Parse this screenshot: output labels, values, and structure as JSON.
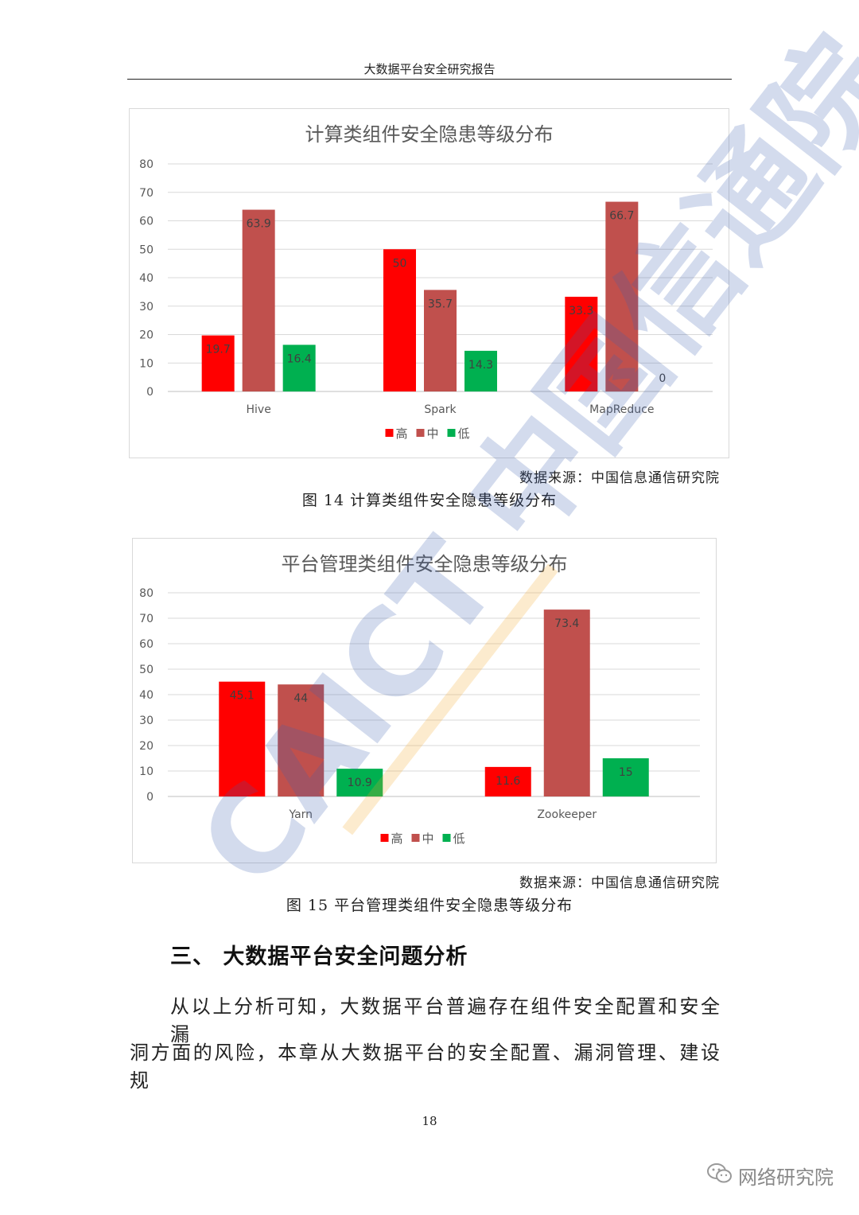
{
  "header": {
    "title": "大数据平台安全研究报告"
  },
  "figures": [
    {
      "source_text": "数据来源：中国信息通信研究院",
      "caption": "图 14 计算类组件安全隐患等级分布"
    },
    {
      "source_text": "数据来源：中国信息通信研究院",
      "caption": "图 15 平台管理类组件安全隐患等级分布"
    }
  ],
  "section": {
    "heading": "三、 大数据平台安全问题分析"
  },
  "paragraph_lines": [
    "从以上分析可知，大数据平台普遍存在组件安全配置和安全漏",
    "洞方面的风险，本章从大数据平台的安全配置、漏洞管理、建设规"
  ],
  "page_number": "18",
  "wechat": {
    "label": "网络研究院",
    "icon": "wechat-icon"
  },
  "watermark": {
    "text": "CAICT 中国信通院"
  },
  "colors": {
    "high": "#ff0000",
    "mid": "#c0504d",
    "low": "#00b050"
  },
  "chart_data": [
    {
      "type": "bar",
      "title": "计算类组件安全隐患等级分布",
      "categories": [
        "Hive",
        "Spark",
        "MapReduce"
      ],
      "series": [
        {
          "name": "高",
          "values": [
            19.7,
            50,
            33.3
          ]
        },
        {
          "name": "中",
          "values": [
            63.9,
            35.7,
            66.7
          ]
        },
        {
          "name": "低",
          "values": [
            16.4,
            14.3,
            0
          ]
        }
      ],
      "ylim": [
        0,
        80
      ],
      "yticks": [
        0,
        10,
        20,
        30,
        40,
        50,
        60,
        70,
        80
      ],
      "grid": true,
      "legend": "bottom"
    },
    {
      "type": "bar",
      "title": "平台管理类组件安全隐患等级分布",
      "categories": [
        "Yarn",
        "Zookeeper"
      ],
      "series": [
        {
          "name": "高",
          "values": [
            45.1,
            11.6
          ]
        },
        {
          "name": "中",
          "values": [
            44,
            73.4
          ]
        },
        {
          "name": "低",
          "values": [
            10.9,
            15
          ]
        }
      ],
      "ylim": [
        0,
        80
      ],
      "yticks": [
        0,
        10,
        20,
        30,
        40,
        50,
        60,
        70,
        80
      ],
      "grid": true,
      "legend": "bottom"
    }
  ]
}
